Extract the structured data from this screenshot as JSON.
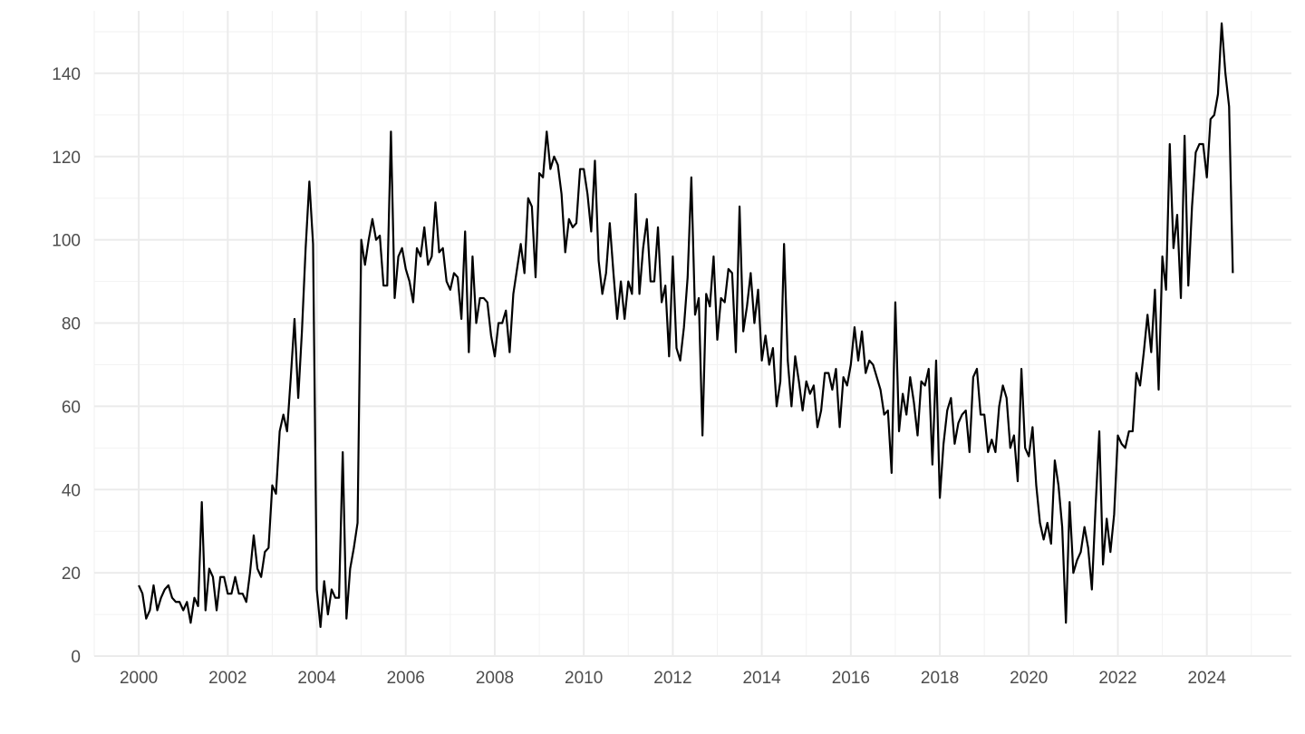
{
  "chart_data": {
    "type": "line",
    "title": "",
    "xlabel": "",
    "ylabel": "",
    "grid": true,
    "xlim": [
      1999.0,
      2025.9
    ],
    "ylim": [
      0,
      155
    ],
    "x_ticks": [
      2000,
      2002,
      2004,
      2006,
      2008,
      2010,
      2012,
      2014,
      2016,
      2018,
      2020,
      2022,
      2024
    ],
    "y_ticks": [
      0,
      20,
      40,
      60,
      80,
      100,
      120,
      140
    ],
    "x_tick_labels": [
      "2000",
      "2002",
      "2004",
      "2006",
      "2008",
      "2010",
      "2012",
      "2014",
      "2016",
      "2018",
      "2020",
      "2022",
      "2024"
    ],
    "y_tick_labels": [
      "0",
      "20",
      "40",
      "60",
      "80",
      "100",
      "120",
      "140"
    ],
    "series": [
      {
        "color": "#000000",
        "start": "2000-01",
        "frequency": "monthly",
        "values": [
          17,
          15,
          9,
          11,
          17,
          11,
          14,
          16,
          17,
          14,
          13,
          13,
          11,
          13,
          8,
          14,
          12,
          37,
          11,
          21,
          19,
          11,
          19,
          19,
          15,
          15,
          19,
          15,
          15,
          13,
          20,
          29,
          21,
          19,
          25,
          26,
          41,
          39,
          54,
          58,
          54,
          67,
          81,
          62,
          78,
          98,
          114,
          99,
          16,
          7,
          18,
          10,
          16,
          14,
          14,
          49,
          9,
          21,
          26,
          32,
          100,
          94,
          100,
          105,
          100,
          101,
          89,
          89,
          126,
          86,
          96,
          98,
          93,
          90,
          85,
          98,
          96,
          103,
          94,
          96,
          109,
          97,
          98,
          90,
          88,
          92,
          91,
          81,
          102,
          73,
          96,
          80,
          86,
          86,
          85,
          77,
          72,
          80,
          80,
          83,
          73,
          87,
          93,
          99,
          92,
          110,
          108,
          91,
          116,
          115,
          126,
          117,
          120,
          118,
          111,
          97,
          105,
          103,
          104,
          117,
          117,
          111,
          102,
          119,
          95,
          87,
          92,
          104,
          92,
          81,
          90,
          81,
          90,
          87,
          111,
          87,
          98,
          105,
          90,
          90,
          103,
          85,
          89,
          72,
          96,
          74,
          71,
          79,
          91,
          115,
          82,
          86,
          53,
          87,
          84,
          96,
          76,
          86,
          85,
          93,
          92,
          73,
          108,
          78,
          84,
          92,
          80,
          88,
          71,
          77,
          70,
          74,
          60,
          66,
          99,
          71,
          60,
          72,
          66,
          59,
          66,
          63,
          65,
          55,
          59,
          68,
          68,
          64,
          69,
          55,
          67,
          65,
          70,
          79,
          71,
          78,
          68,
          71,
          70,
          67,
          64,
          58,
          59,
          44,
          85,
          54,
          63,
          58,
          67,
          61,
          53,
          66,
          65,
          69,
          46,
          71,
          38,
          51,
          59,
          62,
          51,
          56,
          58,
          59,
          49,
          67,
          69,
          58,
          58,
          49,
          52,
          49,
          60,
          65,
          62,
          50,
          53,
          42,
          69,
          50,
          48,
          55,
          41,
          32,
          28,
          32,
          27,
          47,
          41,
          31,
          8,
          37,
          20,
          23,
          25,
          31,
          26,
          16,
          36,
          54,
          22,
          33,
          25,
          34,
          53,
          51,
          50,
          54,
          54,
          68,
          65,
          73,
          82,
          73,
          88,
          64,
          96,
          88,
          123,
          98,
          106,
          86,
          125,
          89,
          108,
          121,
          123,
          123,
          115,
          129,
          130,
          135,
          152,
          140,
          132,
          92
        ]
      }
    ]
  }
}
